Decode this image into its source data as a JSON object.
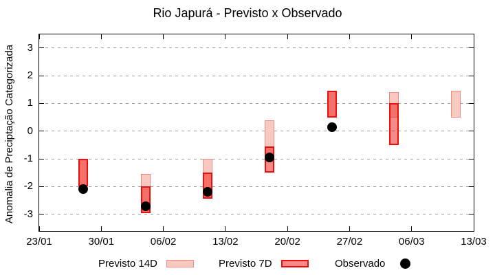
{
  "title": "Rio Japurá - Previsto x Observado",
  "axes": {
    "y_label": "Anomalia de Preciptação Categorizada",
    "y_ticks": [
      3,
      2,
      1,
      0,
      -1,
      -2,
      -3
    ],
    "x_ticks": [
      {
        "day": 0,
        "label": "23/01"
      },
      {
        "day": 7,
        "label": "30/01"
      },
      {
        "day": 14,
        "label": "06/02"
      },
      {
        "day": 21,
        "label": "13/02"
      },
      {
        "day": 28,
        "label": "20/02"
      },
      {
        "day": 35,
        "label": "27/02"
      },
      {
        "day": 42,
        "label": "06/03"
      },
      {
        "day": 49,
        "label": "13/03"
      }
    ],
    "x_range_days": 49
  },
  "legend": [
    {
      "label": "Previsto 14D",
      "swatch": "box-light"
    },
    {
      "label": "Previsto 7D",
      "swatch": "box-dark"
    },
    {
      "label": "Observado",
      "swatch": "dot"
    }
  ],
  "colors": {
    "previsto_14d_fill": "#f9c8c1",
    "previsto_14d_border": "#f0897b",
    "previsto_7d_fill": "rgba(240,30,25,0.52)",
    "previsto_7d_border": "#e90f0c",
    "observado": "#000000",
    "grid": "#9c9c9c"
  },
  "chart_data": {
    "type": "bar",
    "subtype": "ranged-bars-with-scatter-overlay",
    "title": "Rio Japurá - Previsto x Observado",
    "xlabel": "",
    "ylabel": "Anomalia de Preciptação Categorizada",
    "ylim": [
      -3.6,
      3.5
    ],
    "grid": true,
    "legend_position": "bottom",
    "x_tick_labels": [
      "23/01",
      "30/01",
      "06/02",
      "13/02",
      "20/02",
      "27/02",
      "06/03",
      "13/03"
    ],
    "groups": [
      {
        "date": "28/01",
        "day": 5,
        "previsto_14d": [
          -2.0,
          -1.0
        ],
        "previsto_7d": [
          -2.0,
          -1.0
        ],
        "observado": -2.1
      },
      {
        "date": "04/02",
        "day": 12,
        "previsto_14d": [
          -2.95,
          -1.55
        ],
        "previsto_7d": [
          -2.95,
          -2.0
        ],
        "observado": -2.7
      },
      {
        "date": "11/02",
        "day": 19,
        "previsto_14d": [
          -2.45,
          -1.0
        ],
        "previsto_7d": [
          -2.45,
          -1.5
        ],
        "observado": -2.2
      },
      {
        "date": "18/02",
        "day": 26,
        "previsto_14d": [
          -1.1,
          0.4
        ],
        "previsto_7d": [
          -1.5,
          -0.55
        ],
        "observado": -0.95
      },
      {
        "date": "25/02",
        "day": 33,
        "previsto_14d": [
          0.5,
          1.45
        ],
        "previsto_7d": [
          0.5,
          1.45
        ],
        "observado": 0.15
      },
      {
        "date": "04/03",
        "day": 40,
        "previsto_14d": [
          0.5,
          1.4
        ],
        "previsto_7d": [
          -0.5,
          1.0
        ],
        "observado": null
      },
      {
        "date": "11/03",
        "day": 47,
        "previsto_14d": [
          0.5,
          1.45
        ],
        "previsto_7d": null,
        "observado": null
      }
    ]
  }
}
